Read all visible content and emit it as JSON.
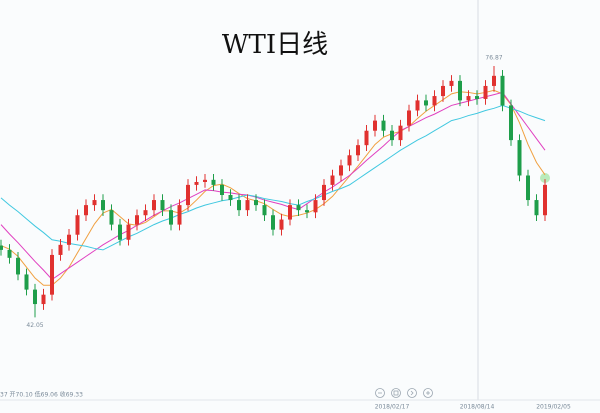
{
  "chart_data": {
    "type": "candlestick",
    "title": "WTI日线",
    "info": "37 开70.10 低69.06 收69.33",
    "ylim": [
      32,
      86
    ],
    "up_color": "#e0312f",
    "down_color": "#1e9e4a",
    "categories": [
      null,
      null,
      null,
      null,
      null,
      null,
      null,
      null,
      null,
      null,
      null,
      null,
      null,
      null,
      null,
      null,
      null,
      null,
      null,
      null,
      null,
      null,
      null,
      null,
      null,
      null,
      null,
      null,
      null,
      null,
      null,
      null,
      null,
      null,
      null,
      null,
      null,
      null,
      null,
      null,
      null,
      null,
      null,
      null,
      null,
      null,
      "2018/02/17",
      null,
      null,
      null,
      null,
      null,
      null,
      null,
      null,
      null,
      "2018/08/14",
      null,
      null,
      null,
      null,
      null,
      null,
      null,
      null,
      "2019/02/05"
    ],
    "open": [
      52.0,
      51.4,
      50.3,
      48.0,
      45.9,
      43.9,
      45.2,
      50.7,
      52.1,
      53.5,
      56.2,
      57.6,
      58.3,
      56.9,
      54.9,
      52.8,
      54.9,
      56.2,
      56.9,
      58.3,
      56.9,
      54.9,
      57.6,
      60.4,
      60.8,
      61.1,
      60.4,
      59.0,
      58.3,
      56.9,
      58.3,
      57.6,
      56.2,
      54.2,
      55.6,
      57.6,
      56.9,
      56.6,
      58.3,
      60.4,
      61.7,
      63.1,
      64.5,
      65.9,
      67.9,
      69.3,
      67.9,
      66.6,
      68.6,
      70.7,
      72.1,
      71.4,
      72.7,
      74.1,
      74.8,
      72.1,
      72.7,
      72.3,
      74.1,
      75.5,
      71.4,
      66.6,
      61.7,
      58.3,
      56.2,
      null
    ],
    "high": [
      52.8,
      52.2,
      51.1,
      48.8,
      46.7,
      46.0,
      51.5,
      52.9,
      54.3,
      57.0,
      58.4,
      59.1,
      59.1,
      57.7,
      55.7,
      55.7,
      57.0,
      57.7,
      59.1,
      59.1,
      57.7,
      58.4,
      61.2,
      61.6,
      61.9,
      61.9,
      61.2,
      59.8,
      59.1,
      59.1,
      59.1,
      58.4,
      57.0,
      56.4,
      58.4,
      58.4,
      57.7,
      59.1,
      61.2,
      62.5,
      63.9,
      65.3,
      66.7,
      68.7,
      70.1,
      70.1,
      68.7,
      69.4,
      71.5,
      72.9,
      72.9,
      73.5,
      74.9,
      75.6,
      75.6,
      73.5,
      73.5,
      74.9,
      76.87,
      76.3,
      72.2,
      67.4,
      62.5,
      59.1,
      61.2,
      null
    ],
    "low": [
      50.6,
      49.5,
      47.2,
      45.1,
      42.05,
      43.1,
      44.4,
      49.9,
      51.3,
      52.7,
      55.4,
      56.8,
      56.1,
      54.1,
      52.0,
      52.0,
      54.1,
      55.4,
      56.1,
      56.1,
      54.1,
      54.1,
      56.8,
      59.6,
      60.0,
      59.6,
      58.2,
      57.5,
      56.1,
      56.1,
      56.8,
      55.4,
      53.4,
      53.4,
      54.8,
      56.1,
      55.8,
      55.8,
      57.5,
      59.6,
      60.9,
      62.3,
      63.7,
      65.1,
      67.1,
      67.1,
      65.8,
      65.8,
      67.8,
      69.9,
      70.6,
      70.6,
      71.9,
      73.3,
      71.3,
      71.3,
      71.5,
      71.5,
      73.3,
      70.6,
      65.8,
      60.9,
      57.5,
      55.4,
      55.4,
      null
    ],
    "close": [
      51.4,
      50.3,
      48.0,
      45.9,
      43.9,
      45.2,
      50.7,
      52.1,
      53.5,
      56.2,
      57.6,
      58.3,
      56.9,
      54.9,
      52.8,
      54.9,
      56.2,
      56.9,
      58.3,
      56.9,
      54.9,
      57.6,
      60.4,
      60.8,
      61.1,
      60.4,
      59.0,
      58.3,
      56.9,
      58.3,
      57.6,
      56.2,
      54.2,
      55.6,
      57.6,
      56.9,
      56.6,
      58.3,
      60.4,
      61.7,
      63.1,
      64.5,
      65.9,
      67.9,
      69.3,
      67.9,
      66.6,
      68.6,
      70.7,
      72.1,
      71.4,
      72.7,
      74.1,
      74.8,
      72.1,
      72.7,
      72.3,
      74.1,
      75.5,
      71.4,
      66.6,
      61.7,
      58.3,
      56.2,
      60.4,
      null
    ],
    "series": [
      {
        "color": "#f0a040",
        "values": [
          52.0,
          51.5,
          50.5,
          49.0,
          47.5,
          46.5,
          46.5,
          47.5,
          49.0,
          51.0,
          53.0,
          55.0,
          56.5,
          57.0,
          56.0,
          55.0,
          54.8,
          55.2,
          56.0,
          56.8,
          56.8,
          56.5,
          57.2,
          58.3,
          59.5,
          60.3,
          60.5,
          60.0,
          59.2,
          58.5,
          58.2,
          57.8,
          57.0,
          56.3,
          56.0,
          56.2,
          56.5,
          57.0,
          57.8,
          58.8,
          60.2,
          61.6,
          63.0,
          64.5,
          66.0,
          67.0,
          67.5,
          67.8,
          68.5,
          69.6,
          70.6,
          71.4,
          72.2,
          73.0,
          73.3,
          73.2,
          73.0,
          73.2,
          73.5,
          73.0,
          71.5,
          69.0,
          66.0,
          63.5,
          61.8,
          null
        ]
      },
      {
        "color": "#e040c0",
        "values": [
          54.9,
          53.6,
          52.4,
          51.1,
          49.8,
          48.6,
          47.3,
          48.1,
          48.9,
          49.7,
          50.5,
          51.3,
          52.1,
          52.8,
          53.5,
          54.1,
          54.8,
          55.5,
          56.2,
          56.8,
          57.4,
          57.9,
          58.5,
          59.1,
          59.7,
          59.6,
          59.4,
          59.3,
          59.1,
          59.0,
          58.7,
          58.3,
          58.0,
          57.7,
          57.3,
          57.0,
          57.8,
          58.6,
          59.4,
          60.1,
          60.9,
          61.7,
          62.7,
          63.8,
          64.8,
          65.8,
          66.9,
          67.9,
          68.5,
          69.1,
          69.7,
          70.2,
          70.8,
          71.4,
          71.7,
          72.0,
          72.3,
          72.6,
          72.9,
          73.2,
          71.6,
          70.0,
          68.4,
          66.8,
          65.2,
          null
        ]
      },
      {
        "color": "#40c8e0",
        "values": [
          58.6,
          57.6,
          56.7,
          55.7,
          54.7,
          53.8,
          52.8,
          52.6,
          52.3,
          52.1,
          51.9,
          51.6,
          51.4,
          52.0,
          52.6,
          53.2,
          53.7,
          54.3,
          54.9,
          55.4,
          55.8,
          56.3,
          56.7,
          57.2,
          57.6,
          57.9,
          58.2,
          58.4,
          58.7,
          59.0,
          58.8,
          58.5,
          58.3,
          58.1,
          57.8,
          57.6,
          58.1,
          58.5,
          59.0,
          59.5,
          59.9,
          60.4,
          61.2,
          62.0,
          62.8,
          63.6,
          64.4,
          65.2,
          65.9,
          66.6,
          67.2,
          67.9,
          68.6,
          69.3,
          69.6,
          70.0,
          70.3,
          70.7,
          71.0,
          71.4,
          71.0,
          70.6,
          70.1,
          69.7,
          69.3,
          null
        ]
      }
    ]
  }
}
